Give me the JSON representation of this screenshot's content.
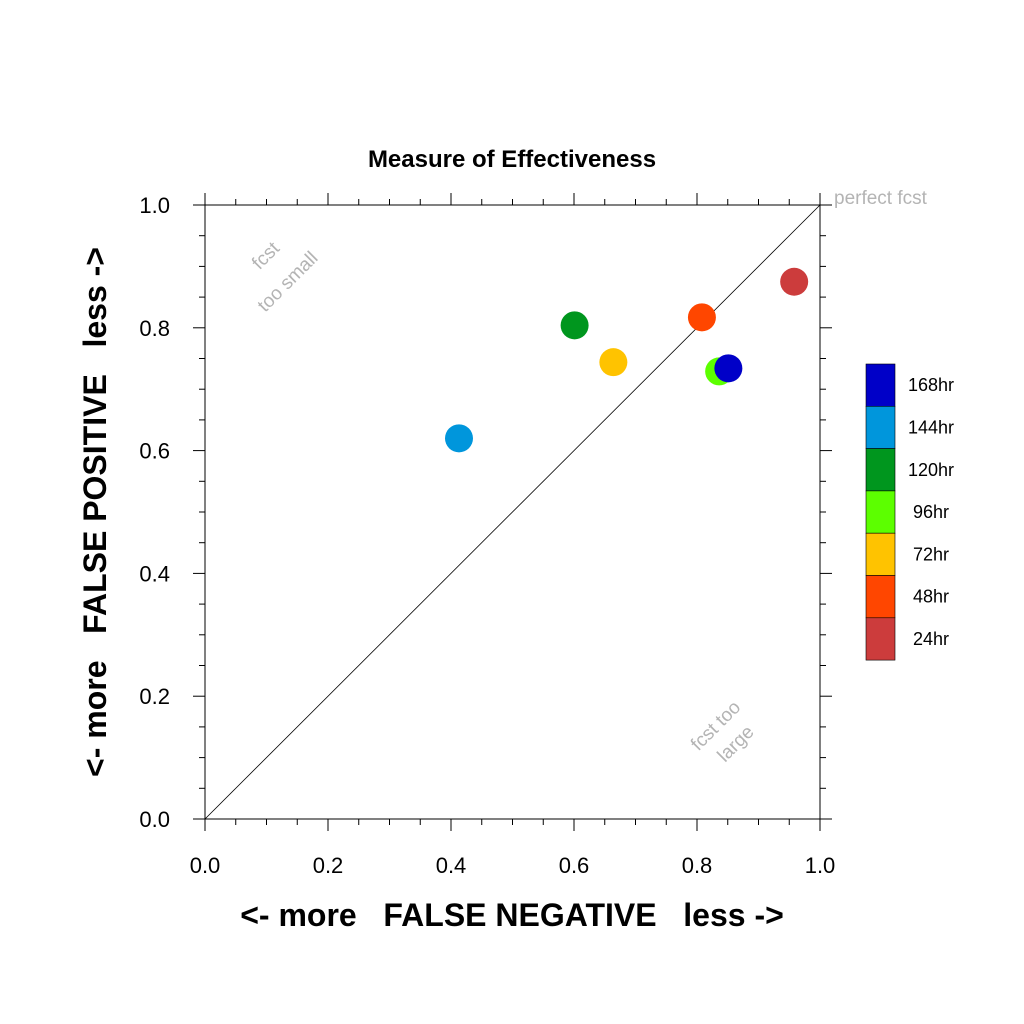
{
  "chart_data": {
    "type": "scatter",
    "title": "Measure of Effectiveness",
    "xlabel": "<- more   FALSE NEGATIVE   less ->",
    "ylabel": "<- more   FALSE POSITIVE   less ->",
    "xlim": [
      0.0,
      1.0
    ],
    "ylim": [
      0.0,
      1.0
    ],
    "xticks": [
      "0.0",
      "0.2",
      "0.4",
      "0.6",
      "0.8",
      "1.0"
    ],
    "yticks": [
      "0.0",
      "0.2",
      "0.4",
      "0.6",
      "0.8",
      "1.0"
    ],
    "grid": false,
    "legend_position": "right",
    "reference_line": {
      "from": [
        0,
        0
      ],
      "to": [
        1,
        1
      ]
    },
    "annotations": {
      "perfect": "perfect fcst",
      "too_small_line1": "fcst",
      "too_small_line2": "too small",
      "too_large_line1": "fcst too",
      "too_large_line2": "large"
    },
    "series": [
      {
        "name": "24hr",
        "color": "#cc3c3c",
        "x": 0.958,
        "y": 0.875
      },
      {
        "name": "48hr",
        "color": "#ff4600",
        "x": 0.808,
        "y": 0.817
      },
      {
        "name": "72hr",
        "color": "#ffc300",
        "x": 0.664,
        "y": 0.744
      },
      {
        "name": "96hr",
        "color": "#5cff00",
        "x": 0.836,
        "y": 0.729
      },
      {
        "name": "120hr",
        "color": "#00961e",
        "x": 0.601,
        "y": 0.804
      },
      {
        "name": "144hr",
        "color": "#0096dc",
        "x": 0.413,
        "y": 0.62
      },
      {
        "name": "168hr",
        "color": "#0000c8",
        "x": 0.851,
        "y": 0.734
      }
    ],
    "legend_order": [
      "168hr",
      "144hr",
      "120hr",
      "96hr",
      "72hr",
      "48hr",
      "24hr"
    ]
  }
}
